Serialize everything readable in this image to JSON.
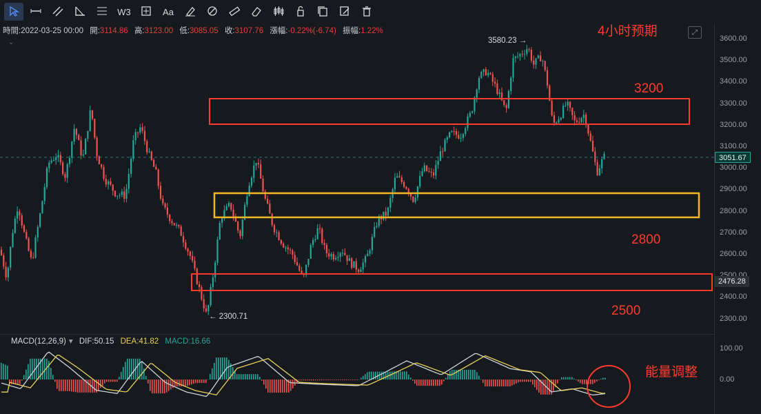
{
  "toolbar": {
    "tools": [
      {
        "name": "cursor-tool",
        "icon": "cursor-icon",
        "glyph": "",
        "active": true
      },
      {
        "name": "horizontal-line-tool",
        "icon": "horizontal-line-icon",
        "glyph": ""
      },
      {
        "name": "parallel-channel-tool",
        "icon": "parallel-channel-icon",
        "glyph": ""
      },
      {
        "name": "angle-tool",
        "icon": "angle-icon",
        "glyph": ""
      },
      {
        "name": "fibonacci-tool",
        "icon": "fibonacci-icon",
        "glyph": ""
      },
      {
        "name": "wave-tool",
        "icon": "wave-icon",
        "glyph": "W3"
      },
      {
        "name": "measure-tool",
        "icon": "crosshair-box-icon",
        "glyph": ""
      },
      {
        "name": "text-tool",
        "icon": "text-icon",
        "glyph": "Aa"
      },
      {
        "name": "marker-tool",
        "icon": "marker-icon",
        "glyph": ""
      },
      {
        "name": "magnet-tool",
        "icon": "magnet-icon",
        "glyph": ""
      },
      {
        "name": "ruler-tool",
        "icon": "ruler-icon",
        "glyph": ""
      },
      {
        "name": "eraser-tool",
        "icon": "eraser-icon",
        "glyph": ""
      },
      {
        "name": "candle-style-tool",
        "icon": "candlestick-icon",
        "glyph": ""
      },
      {
        "name": "lock-tool",
        "icon": "lock-icon",
        "glyph": ""
      },
      {
        "name": "copy-tool",
        "icon": "copy-icon",
        "glyph": ""
      },
      {
        "name": "edit-tool",
        "icon": "edit-icon",
        "glyph": ""
      },
      {
        "name": "delete-tool",
        "icon": "trash-icon",
        "glyph": ""
      }
    ]
  },
  "ohlc": {
    "time_label": "時間:",
    "time_value": "2022-03-25 00:00",
    "open_label": "開:",
    "open_value": "3114.86",
    "high_label": "高:",
    "high_value": "3123.00",
    "low_label": "低:",
    "low_value": "3085.05",
    "close_label": "收:",
    "close_value": "3107.76",
    "change_label": "漲幅:",
    "change_value": "-0.22%(-6.74)",
    "amp_label": "振幅:",
    "amp_value": "1.22%"
  },
  "price_axis": {
    "ticks": [
      "3600.00",
      "3500.00",
      "3400.00",
      "3300.00",
      "3200.00",
      "3100.00",
      "3000.00",
      "2900.00",
      "2800.00",
      "2700.00",
      "2600.00",
      "2500.00",
      "2400.00",
      "2300.00"
    ],
    "current_price": "3051.67",
    "level_price": "2476.28"
  },
  "macd_axis": {
    "ticks": [
      "100.00",
      "0.00"
    ]
  },
  "markers": {
    "high_label": "3580.23 →",
    "low_label": "← 2300.71"
  },
  "annotations": {
    "title": "4小时预期",
    "level_3200": "3200",
    "level_2800": "2800",
    "level_2500": "2500",
    "macd_note": "能量调整"
  },
  "macd_legend": {
    "title": "MACD(12,26,9)",
    "dif": "DIF:50.15",
    "dea": "DEA:41.82",
    "macd": "MACD:16.66"
  },
  "colors": {
    "up": "#26a69a",
    "down": "#ef5350",
    "annotation": "#ff3b2f",
    "zone_yellow": "#f5b824",
    "dif_line": "#d0d3d8",
    "dea_line": "#e8d15a"
  },
  "chart_data": {
    "type": "candlestick",
    "y_range": [
      2250,
      3650
    ],
    "macd_range": [
      -60,
      110
    ],
    "anchors": [
      [
        0,
        2620
      ],
      [
        10,
        2490
      ],
      [
        18,
        2700
      ],
      [
        26,
        2830
      ],
      [
        36,
        2680
      ],
      [
        46,
        2560
      ],
      [
        58,
        2780
      ],
      [
        70,
        3020
      ],
      [
        82,
        3060
      ],
      [
        95,
        2960
      ],
      [
        108,
        3190
      ],
      [
        120,
        3040
      ],
      [
        132,
        3280
      ],
      [
        140,
        3070
      ],
      [
        152,
        2950
      ],
      [
        168,
        2880
      ],
      [
        182,
        2870
      ],
      [
        194,
        3130
      ],
      [
        204,
        3190
      ],
      [
        216,
        3060
      ],
      [
        226,
        2980
      ],
      [
        236,
        2820
      ],
      [
        248,
        2760
      ],
      [
        262,
        2700
      ],
      [
        276,
        2590
      ],
      [
        288,
        2450
      ],
      [
        300,
        2310
      ],
      [
        310,
        2520
      ],
      [
        320,
        2770
      ],
      [
        334,
        2830
      ],
      [
        348,
        2680
      ],
      [
        360,
        2920
      ],
      [
        372,
        3040
      ],
      [
        384,
        2860
      ],
      [
        396,
        2730
      ],
      [
        410,
        2650
      ],
      [
        424,
        2600
      ],
      [
        440,
        2480
      ],
      [
        452,
        2650
      ],
      [
        462,
        2720
      ],
      [
        472,
        2610
      ],
      [
        484,
        2590
      ],
      [
        496,
        2620
      ],
      [
        508,
        2560
      ],
      [
        520,
        2530
      ],
      [
        532,
        2580
      ],
      [
        548,
        2760
      ],
      [
        562,
        2790
      ],
      [
        574,
        2960
      ],
      [
        588,
        2920
      ],
      [
        600,
        2850
      ],
      [
        614,
        3000
      ],
      [
        628,
        2960
      ],
      [
        640,
        3080
      ],
      [
        654,
        3160
      ],
      [
        668,
        3150
      ],
      [
        684,
        3260
      ],
      [
        694,
        3420
      ],
      [
        706,
        3450
      ],
      [
        720,
        3370
      ],
      [
        734,
        3260
      ],
      [
        744,
        3500
      ],
      [
        756,
        3530
      ],
      [
        766,
        3560
      ],
      [
        774,
        3480
      ],
      [
        786,
        3520
      ],
      [
        794,
        3390
      ],
      [
        802,
        3200
      ],
      [
        812,
        3240
      ],
      [
        822,
        3300
      ],
      [
        834,
        3210
      ],
      [
        848,
        3250
      ],
      [
        856,
        3130
      ],
      [
        866,
        2980
      ],
      [
        876,
        3050
      ]
    ],
    "macd_anchors": [
      [
        0,
        -10
      ],
      [
        30,
        -30
      ],
      [
        70,
        90
      ],
      [
        100,
        40
      ],
      [
        140,
        -35
      ],
      [
        170,
        -45
      ],
      [
        205,
        60
      ],
      [
        240,
        -10
      ],
      [
        270,
        -40
      ],
      [
        300,
        -55
      ],
      [
        330,
        40
      ],
      [
        375,
        75
      ],
      [
        420,
        -10
      ],
      [
        460,
        -15
      ],
      [
        520,
        -20
      ],
      [
        560,
        25
      ],
      [
        590,
        60
      ],
      [
        640,
        15
      ],
      [
        690,
        85
      ],
      [
        740,
        35
      ],
      [
        770,
        25
      ],
      [
        800,
        -40
      ],
      [
        830,
        -30
      ],
      [
        860,
        -50
      ],
      [
        880,
        -45
      ]
    ]
  }
}
